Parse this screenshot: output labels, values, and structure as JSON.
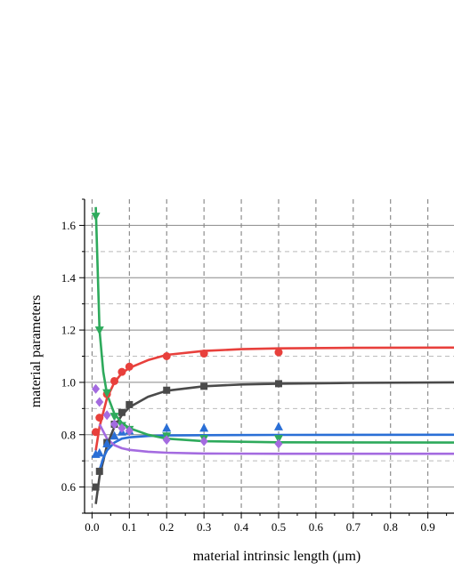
{
  "chart_data": {
    "type": "scatter",
    "xlabel": "material intrinsic length (μm)",
    "ylabel": "material parameters",
    "xlim": [
      -0.02,
      0.97
    ],
    "ylim": [
      0.5,
      1.7
    ],
    "x_ticks": [
      0.0,
      0.1,
      0.2,
      0.3,
      0.4,
      0.5,
      0.6,
      0.7,
      0.8,
      0.9
    ],
    "x_tick_labels": [
      "0.0",
      "0.1",
      "0.2",
      "0.3",
      "0.4",
      "0.5",
      "0.6",
      "0.7",
      "0.8",
      "0.9"
    ],
    "y_ticks": [
      0.6,
      0.8,
      1.0,
      1.2,
      1.4,
      1.6
    ],
    "y_tick_labels": [
      "0.6",
      "0.8",
      "1.0",
      "1.2",
      "1.4",
      "1.6"
    ],
    "grid": true,
    "series": [
      {
        "marker": "circle",
        "color": "#e8403c",
        "points": [
          [
            0.01,
            0.81
          ],
          [
            0.02,
            0.865
          ],
          [
            0.04,
            0.955
          ],
          [
            0.06,
            1.005
          ],
          [
            0.08,
            1.04
          ],
          [
            0.1,
            1.06
          ],
          [
            0.2,
            1.1
          ],
          [
            0.3,
            1.11
          ],
          [
            0.5,
            1.115
          ]
        ],
        "fit": [
          [
            0.01,
            0.74
          ],
          [
            0.02,
            0.83
          ],
          [
            0.04,
            0.94
          ],
          [
            0.06,
            1.0
          ],
          [
            0.08,
            1.035
          ],
          [
            0.1,
            1.055
          ],
          [
            0.15,
            1.085
          ],
          [
            0.2,
            1.105
          ],
          [
            0.3,
            1.12
          ],
          [
            0.4,
            1.127
          ],
          [
            0.5,
            1.13
          ],
          [
            0.7,
            1.132
          ],
          [
            0.97,
            1.133
          ]
        ]
      },
      {
        "marker": "square",
        "color": "#4a4a4a",
        "points": [
          [
            0.01,
            0.6
          ],
          [
            0.02,
            0.66
          ],
          [
            0.04,
            0.77
          ],
          [
            0.06,
            0.84
          ],
          [
            0.08,
            0.885
          ],
          [
            0.1,
            0.915
          ],
          [
            0.2,
            0.97
          ],
          [
            0.3,
            0.985
          ],
          [
            0.5,
            0.995
          ]
        ],
        "fit": [
          [
            0.01,
            0.535
          ],
          [
            0.02,
            0.64
          ],
          [
            0.04,
            0.76
          ],
          [
            0.06,
            0.83
          ],
          [
            0.08,
            0.875
          ],
          [
            0.1,
            0.905
          ],
          [
            0.15,
            0.945
          ],
          [
            0.2,
            0.968
          ],
          [
            0.3,
            0.985
          ],
          [
            0.4,
            0.992
          ],
          [
            0.5,
            0.995
          ],
          [
            0.7,
            0.998
          ],
          [
            0.97,
            1.0
          ]
        ]
      },
      {
        "marker": "triangle-up",
        "color": "#2a6fd6",
        "points": [
          [
            0.01,
            0.725
          ],
          [
            0.02,
            0.73
          ],
          [
            0.04,
            0.765
          ],
          [
            0.06,
            0.795
          ],
          [
            0.08,
            0.81
          ],
          [
            0.1,
            0.815
          ],
          [
            0.2,
            0.825
          ],
          [
            0.3,
            0.825
          ],
          [
            0.5,
            0.83
          ]
        ],
        "fit": [
          [
            0.02,
            0.665
          ],
          [
            0.03,
            0.71
          ],
          [
            0.04,
            0.74
          ],
          [
            0.06,
            0.77
          ],
          [
            0.08,
            0.785
          ],
          [
            0.1,
            0.79
          ],
          [
            0.15,
            0.795
          ],
          [
            0.2,
            0.797
          ],
          [
            0.3,
            0.798
          ],
          [
            0.5,
            0.799
          ],
          [
            0.97,
            0.8
          ]
        ]
      },
      {
        "marker": "triangle-down",
        "color": "#2eaa5c",
        "points": [
          [
            0.01,
            1.635
          ],
          [
            0.02,
            1.2
          ],
          [
            0.04,
            0.96
          ],
          [
            0.06,
            0.87
          ],
          [
            0.08,
            0.835
          ],
          [
            0.1,
            0.82
          ],
          [
            0.2,
            0.795
          ],
          [
            0.3,
            0.785
          ],
          [
            0.5,
            0.785
          ]
        ],
        "fit": [
          [
            0.01,
            1.67
          ],
          [
            0.02,
            1.2
          ],
          [
            0.03,
            1.04
          ],
          [
            0.04,
            0.955
          ],
          [
            0.06,
            0.88
          ],
          [
            0.08,
            0.845
          ],
          [
            0.1,
            0.825
          ],
          [
            0.15,
            0.8
          ],
          [
            0.2,
            0.785
          ],
          [
            0.3,
            0.775
          ],
          [
            0.5,
            0.771
          ],
          [
            0.97,
            0.77
          ]
        ]
      },
      {
        "marker": "diamond",
        "color": "#a46be0",
        "points": [
          [
            0.01,
            0.975
          ],
          [
            0.02,
            0.925
          ],
          [
            0.04,
            0.875
          ],
          [
            0.06,
            0.84
          ],
          [
            0.08,
            0.825
          ],
          [
            0.1,
            0.815
          ],
          [
            0.2,
            0.78
          ],
          [
            0.3,
            0.775
          ],
          [
            0.5,
            0.765
          ]
        ],
        "fit": [
          [
            0.02,
            0.84
          ],
          [
            0.04,
            0.785
          ],
          [
            0.06,
            0.76
          ],
          [
            0.08,
            0.748
          ],
          [
            0.1,
            0.742
          ],
          [
            0.15,
            0.735
          ],
          [
            0.2,
            0.731
          ],
          [
            0.3,
            0.728
          ],
          [
            0.5,
            0.727
          ],
          [
            0.97,
            0.727
          ]
        ]
      }
    ]
  }
}
